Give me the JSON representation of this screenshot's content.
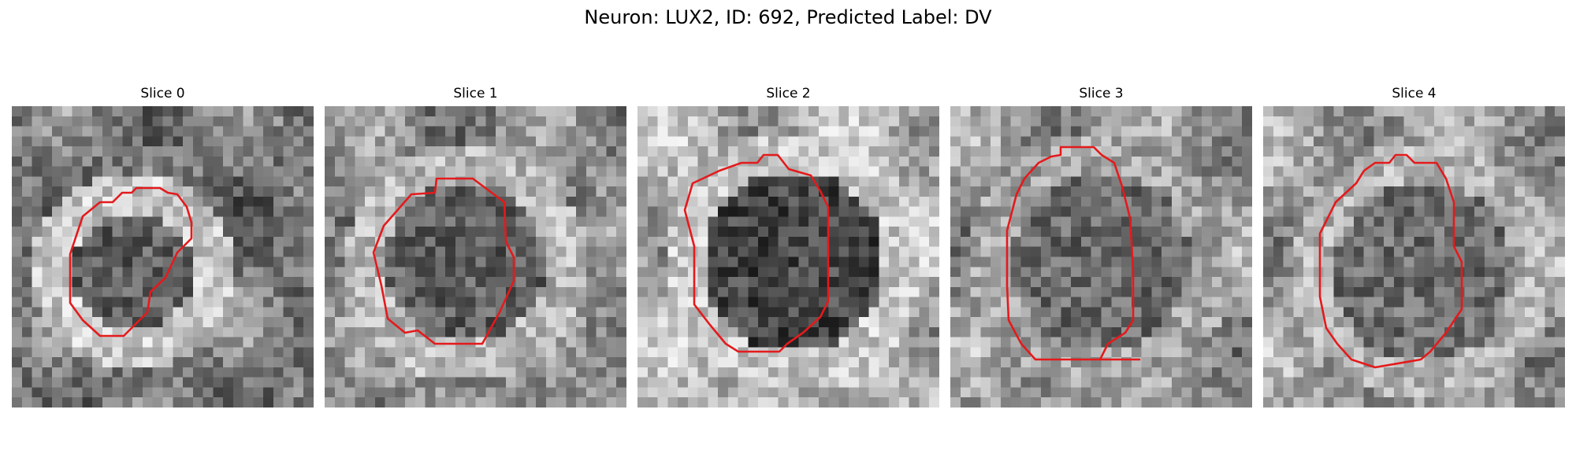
{
  "figure": {
    "title": "Neuron: LUX2, ID: 692, Predicted Label: DV"
  },
  "colors": {
    "outline": "#e41a1c",
    "background": "#ffffff"
  },
  "panels": [
    {
      "title": "Slice 0"
    },
    {
      "title": "Slice 1"
    },
    {
      "title": "Slice 2"
    },
    {
      "title": "Slice 3"
    },
    {
      "title": "Slice 4"
    }
  ]
}
